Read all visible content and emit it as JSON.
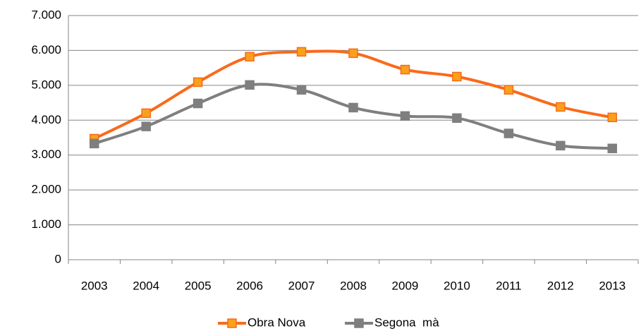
{
  "chart_data": {
    "type": "line",
    "categories": [
      "2003",
      "2004",
      "2005",
      "2006",
      "2007",
      "2008",
      "2009",
      "2010",
      "2011",
      "2012",
      "2013"
    ],
    "series": [
      {
        "name": "Obra Nova",
        "color": "#f96a1b",
        "marker_color": "#f9a11b",
        "values": [
          3470,
          4200,
          5090,
          5820,
          5960,
          5920,
          5450,
          5250,
          4870,
          4380,
          4080
        ]
      },
      {
        "name": "Segona  mà",
        "color": "#7f7f7f",
        "marker_color": "#7f7f7f",
        "values": [
          3330,
          3820,
          4480,
          5010,
          4870,
          4360,
          4120,
          4060,
          3620,
          3270,
          3190
        ]
      }
    ],
    "ylim": [
      0,
      7000
    ],
    "yticks": [
      0,
      {
        "value": 1000,
        "label": "1.000"
      },
      {
        "value": 2000,
        "label": "2.000"
      },
      {
        "value": 3000,
        "label": "3.000"
      },
      {
        "value": 4000,
        "label": "4.000"
      },
      {
        "value": 5000,
        "label": "5.000"
      },
      {
        "value": 6000,
        "label": "6.000"
      },
      {
        "value": 7000,
        "label": "7.000"
      }
    ],
    "grid": true,
    "smooth": true,
    "legend": "bottom"
  }
}
